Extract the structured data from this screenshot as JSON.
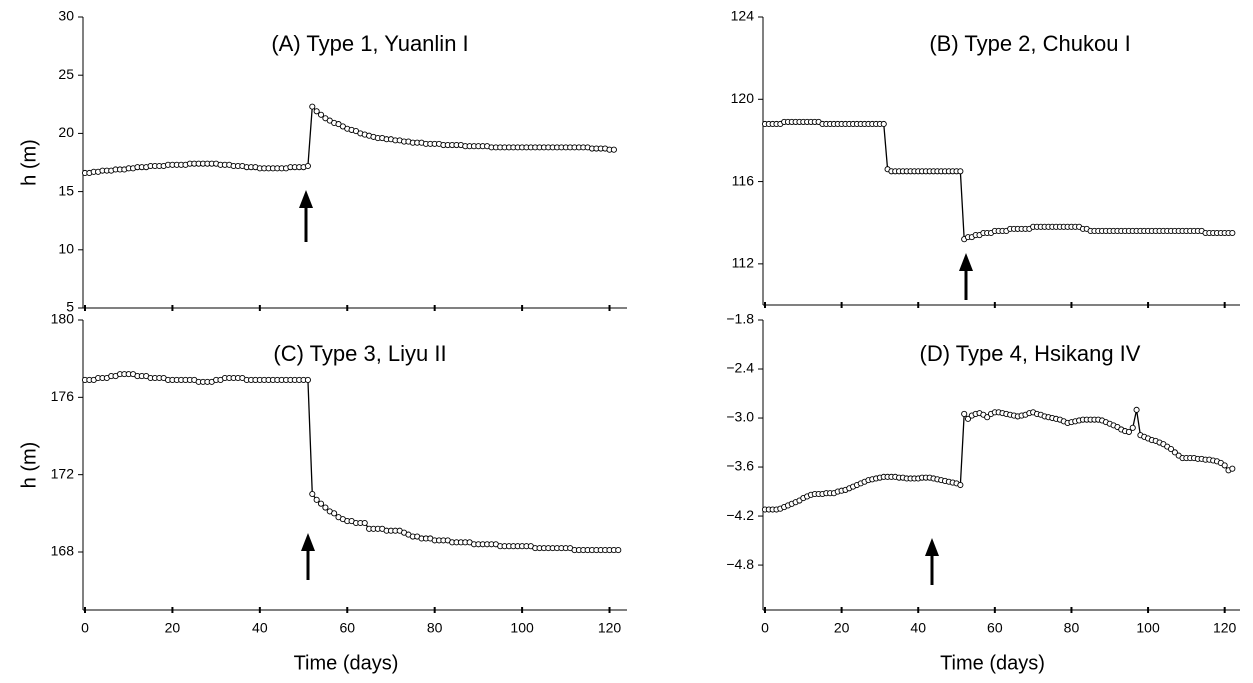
{
  "chart_data": [
    {
      "type": "line",
      "title": "(A) Type 1, Yuanlin I",
      "y_label": "h (m)",
      "color": "#000000",
      "markers": true,
      "xticklabels": false,
      "xlim": [
        0,
        124
      ],
      "xticks": [
        0,
        20,
        40,
        60,
        80,
        100,
        120
      ],
      "ylim": [
        5,
        30
      ],
      "yticks": [
        5,
        10,
        15,
        20,
        25,
        30
      ],
      "x": [
        0,
        1,
        2,
        3,
        4,
        5,
        6,
        7,
        8,
        9,
        10,
        11,
        12,
        13,
        14,
        15,
        16,
        17,
        18,
        19,
        20,
        21,
        22,
        23,
        24,
        25,
        26,
        27,
        28,
        29,
        30,
        31,
        32,
        33,
        34,
        35,
        36,
        37,
        38,
        39,
        40,
        41,
        42,
        43,
        44,
        45,
        46,
        47,
        48,
        49,
        50,
        51,
        52,
        53,
        54,
        55,
        56,
        57,
        58,
        59,
        60,
        61,
        62,
        63,
        64,
        65,
        66,
        67,
        68,
        69,
        70,
        71,
        72,
        73,
        74,
        75,
        76,
        77,
        78,
        79,
        80,
        81,
        82,
        83,
        84,
        85,
        86,
        87,
        88,
        89,
        90,
        91,
        92,
        93,
        94,
        95,
        96,
        97,
        98,
        99,
        100,
        101,
        102,
        103,
        104,
        105,
        106,
        107,
        108,
        109,
        110,
        111,
        112,
        113,
        114,
        115,
        116,
        117,
        118,
        119,
        120,
        121
      ],
      "values": [
        16.6,
        16.6,
        16.7,
        16.7,
        16.8,
        16.8,
        16.8,
        16.9,
        16.9,
        16.9,
        17.0,
        17.0,
        17.1,
        17.1,
        17.1,
        17.2,
        17.2,
        17.2,
        17.2,
        17.3,
        17.3,
        17.3,
        17.3,
        17.3,
        17.4,
        17.4,
        17.4,
        17.4,
        17.4,
        17.4,
        17.4,
        17.3,
        17.3,
        17.3,
        17.2,
        17.2,
        17.2,
        17.1,
        17.1,
        17.1,
        17.0,
        17.0,
        17.0,
        17.0,
        17.0,
        17.0,
        17.0,
        17.1,
        17.1,
        17.1,
        17.1,
        17.2,
        22.3,
        21.9,
        21.6,
        21.3,
        21.1,
        20.9,
        20.8,
        20.6,
        20.4,
        20.3,
        20.2,
        20.0,
        19.9,
        19.8,
        19.7,
        19.6,
        19.6,
        19.5,
        19.5,
        19.4,
        19.4,
        19.3,
        19.3,
        19.2,
        19.2,
        19.2,
        19.1,
        19.1,
        19.1,
        19.1,
        19.0,
        19.0,
        19.0,
        19.0,
        19.0,
        18.9,
        18.9,
        18.9,
        18.9,
        18.9,
        18.9,
        18.8,
        18.8,
        18.8,
        18.8,
        18.8,
        18.8,
        18.8,
        18.8,
        18.8,
        18.8,
        18.8,
        18.8,
        18.8,
        18.8,
        18.8,
        18.8,
        18.8,
        18.8,
        18.8,
        18.8,
        18.8,
        18.8,
        18.8,
        18.7,
        18.7,
        18.7,
        18.7,
        18.6,
        18.6
      ]
    },
    {
      "type": "line",
      "title": "(B) Type 2, Chukou I",
      "color": "#000000",
      "markers": true,
      "xticklabels": false,
      "xlim": [
        0,
        124
      ],
      "xticks": [
        0,
        20,
        40,
        60,
        80,
        100,
        120
      ],
      "ylim": [
        110,
        124
      ],
      "yticks": [
        112,
        116,
        120,
        124
      ],
      "x": [
        0,
        1,
        2,
        3,
        4,
        5,
        6,
        7,
        8,
        9,
        10,
        11,
        12,
        13,
        14,
        15,
        16,
        17,
        18,
        19,
        20,
        21,
        22,
        23,
        24,
        25,
        26,
        27,
        28,
        29,
        30,
        31,
        32,
        33,
        34,
        35,
        36,
        37,
        38,
        39,
        40,
        41,
        42,
        43,
        44,
        45,
        46,
        47,
        48,
        49,
        50,
        51,
        52,
        53,
        54,
        55,
        56,
        57,
        58,
        59,
        60,
        61,
        62,
        63,
        64,
        65,
        66,
        67,
        68,
        69,
        70,
        71,
        72,
        73,
        74,
        75,
        76,
        77,
        78,
        79,
        80,
        81,
        82,
        83,
        84,
        85,
        86,
        87,
        88,
        89,
        90,
        91,
        92,
        93,
        94,
        95,
        96,
        97,
        98,
        99,
        100,
        101,
        102,
        103,
        104,
        105,
        106,
        107,
        108,
        109,
        110,
        111,
        112,
        113,
        114,
        115,
        116,
        117,
        118,
        119,
        120,
        121,
        122
      ],
      "values": [
        118.8,
        118.8,
        118.8,
        118.8,
        118.8,
        118.9,
        118.9,
        118.9,
        118.9,
        118.9,
        118.9,
        118.9,
        118.9,
        118.9,
        118.9,
        118.8,
        118.8,
        118.8,
        118.8,
        118.8,
        118.8,
        118.8,
        118.8,
        118.8,
        118.8,
        118.8,
        118.8,
        118.8,
        118.8,
        118.8,
        118.8,
        118.8,
        116.6,
        116.5,
        116.5,
        116.5,
        116.5,
        116.5,
        116.5,
        116.5,
        116.5,
        116.5,
        116.5,
        116.5,
        116.5,
        116.5,
        116.5,
        116.5,
        116.5,
        116.5,
        116.5,
        116.5,
        113.2,
        113.3,
        113.3,
        113.4,
        113.4,
        113.5,
        113.5,
        113.5,
        113.6,
        113.6,
        113.6,
        113.6,
        113.7,
        113.7,
        113.7,
        113.7,
        113.7,
        113.7,
        113.8,
        113.8,
        113.8,
        113.8,
        113.8,
        113.8,
        113.8,
        113.8,
        113.8,
        113.8,
        113.8,
        113.8,
        113.8,
        113.7,
        113.7,
        113.6,
        113.6,
        113.6,
        113.6,
        113.6,
        113.6,
        113.6,
        113.6,
        113.6,
        113.6,
        113.6,
        113.6,
        113.6,
        113.6,
        113.6,
        113.6,
        113.6,
        113.6,
        113.6,
        113.6,
        113.6,
        113.6,
        113.6,
        113.6,
        113.6,
        113.6,
        113.6,
        113.6,
        113.6,
        113.6,
        113.5,
        113.5,
        113.5,
        113.5,
        113.5,
        113.5,
        113.5,
        113.5
      ]
    },
    {
      "type": "line",
      "title": "(C) Type 3, Liyu II",
      "y_label": "h (m)",
      "x_label": "Time (days)",
      "color": "#000000",
      "markers": true,
      "xticklabels": true,
      "xlim": [
        0,
        124
      ],
      "xticks": [
        0,
        20,
        40,
        60,
        80,
        100,
        120
      ],
      "ylim": [
        165,
        180
      ],
      "yticks": [
        168,
        172,
        176,
        180
      ],
      "x": [
        0,
        1,
        2,
        3,
        4,
        5,
        6,
        7,
        8,
        9,
        10,
        11,
        12,
        13,
        14,
        15,
        16,
        17,
        18,
        19,
        20,
        21,
        22,
        23,
        24,
        25,
        26,
        27,
        28,
        29,
        30,
        31,
        32,
        33,
        34,
        35,
        36,
        37,
        38,
        39,
        40,
        41,
        42,
        43,
        44,
        45,
        46,
        47,
        48,
        49,
        50,
        51,
        52,
        53,
        54,
        55,
        56,
        57,
        58,
        59,
        60,
        61,
        62,
        63,
        64,
        65,
        66,
        67,
        68,
        69,
        70,
        71,
        72,
        73,
        74,
        75,
        76,
        77,
        78,
        79,
        80,
        81,
        82,
        83,
        84,
        85,
        86,
        87,
        88,
        89,
        90,
        91,
        92,
        93,
        94,
        95,
        96,
        97,
        98,
        99,
        100,
        101,
        102,
        103,
        104,
        105,
        106,
        107,
        108,
        109,
        110,
        111,
        112,
        113,
        114,
        115,
        116,
        117,
        118,
        119,
        120,
        121,
        122
      ],
      "values": [
        176.9,
        176.9,
        176.9,
        177.0,
        177.0,
        177.0,
        177.1,
        177.1,
        177.2,
        177.2,
        177.2,
        177.2,
        177.1,
        177.1,
        177.1,
        177.0,
        177.0,
        177.0,
        177.0,
        176.9,
        176.9,
        176.9,
        176.9,
        176.9,
        176.9,
        176.9,
        176.8,
        176.8,
        176.8,
        176.8,
        176.9,
        176.9,
        177.0,
        177.0,
        177.0,
        177.0,
        177.0,
        176.9,
        176.9,
        176.9,
        176.9,
        176.9,
        176.9,
        176.9,
        176.9,
        176.9,
        176.9,
        176.9,
        176.9,
        176.9,
        176.9,
        176.9,
        171.0,
        170.7,
        170.5,
        170.3,
        170.1,
        170.0,
        169.8,
        169.7,
        169.6,
        169.6,
        169.5,
        169.5,
        169.5,
        169.2,
        169.2,
        169.2,
        169.2,
        169.1,
        169.1,
        169.1,
        169.1,
        169.0,
        168.9,
        168.8,
        168.8,
        168.7,
        168.7,
        168.7,
        168.6,
        168.6,
        168.6,
        168.6,
        168.5,
        168.5,
        168.5,
        168.5,
        168.5,
        168.4,
        168.4,
        168.4,
        168.4,
        168.4,
        168.4,
        168.3,
        168.3,
        168.3,
        168.3,
        168.3,
        168.3,
        168.3,
        168.3,
        168.2,
        168.2,
        168.2,
        168.2,
        168.2,
        168.2,
        168.2,
        168.2,
        168.2,
        168.1,
        168.1,
        168.1,
        168.1,
        168.1,
        168.1,
        168.1,
        168.1,
        168.1,
        168.1,
        168.1
      ]
    },
    {
      "type": "line",
      "title": "(D) Type 4, Hsikang IV",
      "x_label": "Time (days)",
      "color": "#000000",
      "markers": true,
      "xticklabels": true,
      "xlim": [
        0,
        124
      ],
      "xticks": [
        0,
        20,
        40,
        60,
        80,
        100,
        120
      ],
      "ylim": [
        -5.35,
        -1.8
      ],
      "yticks": [
        {
          "value": -4.8,
          "label": "−4.8"
        },
        {
          "value": -4.2,
          "label": "−4.2"
        },
        {
          "value": -3.6,
          "label": "−3.6"
        },
        {
          "value": -3.0,
          "label": "−3.0"
        },
        {
          "value": -2.4,
          "label": "−2.4"
        },
        {
          "value": -1.8,
          "label": "−1.8"
        }
      ],
      "x": [
        0,
        1,
        2,
        3,
        4,
        5,
        6,
        7,
        8,
        9,
        10,
        11,
        12,
        13,
        14,
        15,
        16,
        17,
        18,
        19,
        20,
        21,
        22,
        23,
        24,
        25,
        26,
        27,
        28,
        29,
        30,
        31,
        32,
        33,
        34,
        35,
        36,
        37,
        38,
        39,
        40,
        41,
        42,
        43,
        44,
        45,
        46,
        47,
        48,
        49,
        50,
        51,
        52,
        53,
        54,
        55,
        56,
        57,
        58,
        59,
        60,
        61,
        62,
        63,
        64,
        65,
        66,
        67,
        68,
        69,
        70,
        71,
        72,
        73,
        74,
        75,
        76,
        77,
        78,
        79,
        80,
        81,
        82,
        83,
        84,
        85,
        86,
        87,
        88,
        89,
        90,
        91,
        92,
        93,
        94,
        95,
        96,
        97,
        98,
        99,
        100,
        101,
        102,
        103,
        104,
        105,
        106,
        107,
        108,
        109,
        110,
        111,
        112,
        113,
        114,
        115,
        116,
        117,
        118,
        119,
        120,
        121,
        122
      ],
      "values": [
        -4.12,
        -4.12,
        -4.12,
        -4.12,
        -4.11,
        -4.09,
        -4.07,
        -4.05,
        -4.03,
        -4.01,
        -3.98,
        -3.96,
        -3.94,
        -3.93,
        -3.93,
        -3.93,
        -3.92,
        -3.92,
        -3.92,
        -3.9,
        -3.89,
        -3.88,
        -3.86,
        -3.84,
        -3.82,
        -3.8,
        -3.78,
        -3.76,
        -3.75,
        -3.74,
        -3.73,
        -3.72,
        -3.72,
        -3.72,
        -3.72,
        -3.73,
        -3.73,
        -3.74,
        -3.74,
        -3.74,
        -3.74,
        -3.73,
        -3.73,
        -3.73,
        -3.74,
        -3.75,
        -3.76,
        -3.77,
        -3.78,
        -3.79,
        -3.8,
        -3.82,
        -2.95,
        -3.01,
        -2.97,
        -2.95,
        -2.94,
        -2.96,
        -2.99,
        -2.95,
        -2.93,
        -2.93,
        -2.94,
        -2.95,
        -2.96,
        -2.97,
        -2.98,
        -2.97,
        -2.96,
        -2.94,
        -2.93,
        -2.95,
        -2.96,
        -2.98,
        -2.99,
        -3.0,
        -3.01,
        -3.02,
        -3.04,
        -3.06,
        -3.05,
        -3.04,
        -3.03,
        -3.02,
        -3.02,
        -3.02,
        -3.02,
        -3.02,
        -3.03,
        -3.05,
        -3.07,
        -3.09,
        -3.11,
        -3.14,
        -3.16,
        -3.17,
        -3.12,
        -2.9,
        -3.21,
        -3.23,
        -3.25,
        -3.27,
        -3.28,
        -3.3,
        -3.32,
        -3.35,
        -3.38,
        -3.42,
        -3.46,
        -3.49,
        -3.49,
        -3.49,
        -3.49,
        -3.5,
        -3.5,
        -3.51,
        -3.51,
        -3.52,
        -3.53,
        -3.55,
        -3.58,
        -3.64,
        -3.62
      ]
    }
  ]
}
